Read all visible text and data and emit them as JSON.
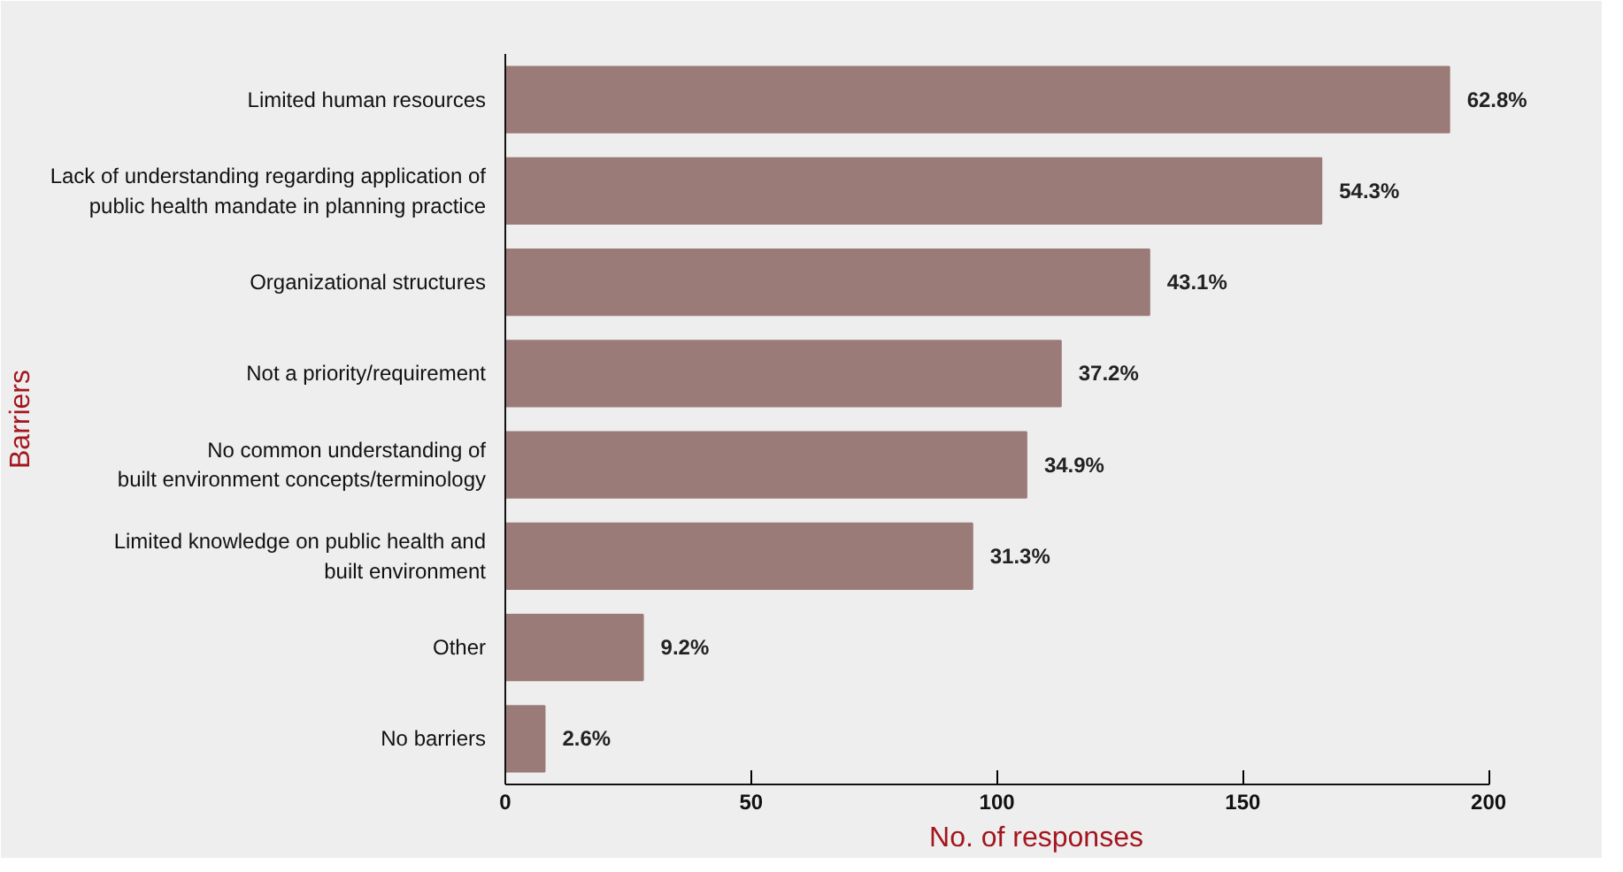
{
  "chart_data": {
    "type": "bar",
    "orientation": "horizontal",
    "categories": [
      "Limited human resources",
      "Lack of understanding regarding application of\npublic health mandate in planning practice",
      "Organizational structures",
      "Not a priority/requirement",
      "No common understanding of\nbuilt environment concepts/terminology",
      "Limited knowledge on public health and\nbuilt environment",
      "Other",
      "No barriers"
    ],
    "values": [
      192,
      166,
      131,
      113,
      106,
      95,
      28,
      8
    ],
    "annotations": [
      {
        "text": "62.8%",
        "x": 192,
        "y": "Limited human resources"
      },
      {
        "text": "54.3%",
        "x": 166,
        "y": "Lack of understanding regarding application of\npublic health mandate in planning practice"
      },
      {
        "text": "43.1%",
        "x": 131,
        "y": "Organizational structures"
      },
      {
        "text": "37.2%",
        "x": 113,
        "y": "Not a priority/requirement"
      },
      {
        "text": "34.9%",
        "x": 106,
        "y": "No common understanding of\nbuilt environment concepts/terminology"
      },
      {
        "text": "31.3%",
        "x": 95,
        "y": "Limited knowledge on public health and\nbuilt environment"
      },
      {
        "text": "9.2%",
        "x": 28,
        "y": "Other"
      },
      {
        "text": "2.6%",
        "x": 8,
        "y": "No barriers"
      }
    ],
    "color": "#9b7b78",
    "xlim": [
      0,
      200
    ],
    "xticks": [
      0,
      50,
      100,
      150,
      200
    ],
    "xlabel": "No. of responses",
    "ylabel": "Barriers",
    "grid": false
  }
}
